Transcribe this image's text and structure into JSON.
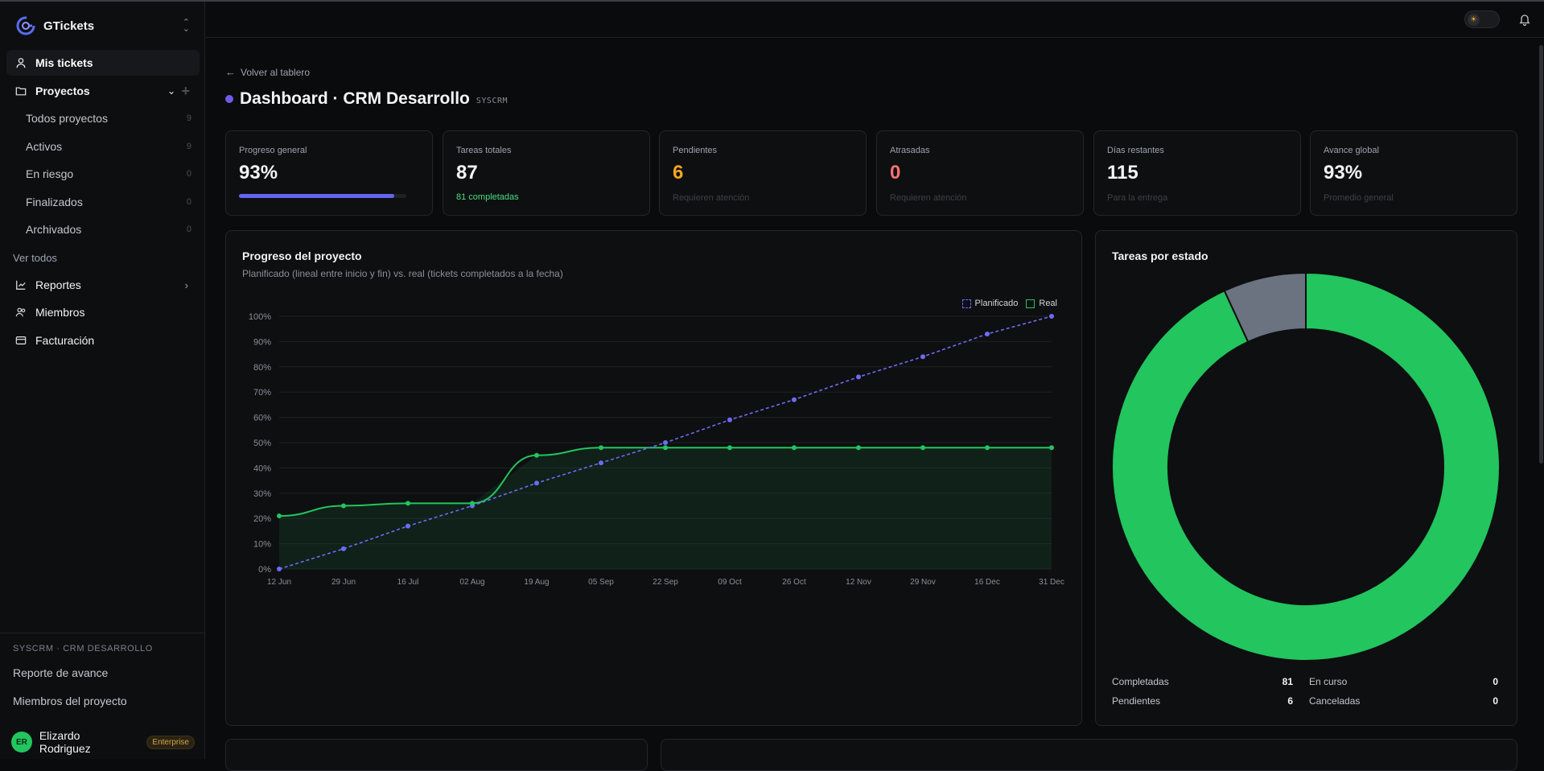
{
  "app": {
    "name": "GTickets"
  },
  "sidebar": {
    "my_tickets": "Mis tickets",
    "projects": "Proyectos",
    "project_filters": [
      {
        "label": "Todos proyectos",
        "count": "9"
      },
      {
        "label": "Activos",
        "count": "9"
      },
      {
        "label": "En riesgo",
        "count": "0"
      },
      {
        "label": "Finalizados",
        "count": "0"
      },
      {
        "label": "Archivados",
        "count": "0"
      }
    ],
    "see_all": "Ver todos",
    "reports": "Reportes",
    "members": "Miembros",
    "billing": "Facturación",
    "project_section": "SYSCRM · CRM DESARROLLO",
    "project_links": [
      "Reporte de avance",
      "Miembros del proyecto"
    ],
    "user": {
      "initials": "ER",
      "name": "Elizardo Rodriguez",
      "plan": "Enterprise"
    }
  },
  "header": {
    "back": "Volver al tablero",
    "title": "Dashboard · CRM Desarrollo",
    "code": "SYSCRM"
  },
  "stats": [
    {
      "label": "Progreso general",
      "value": "93%",
      "progress": 0.93
    },
    {
      "label": "Tareas totales",
      "value": "87",
      "sub": "81 completadas"
    },
    {
      "label": "Pendientes",
      "value": "6",
      "sub": "Requieren atención"
    },
    {
      "label": "Atrasadas",
      "value": "0",
      "sub": "Requieren atención"
    },
    {
      "label": "Días restantes",
      "value": "115",
      "sub": "Para la entrega"
    },
    {
      "label": "Avance global",
      "value": "93%",
      "sub": "Promedio general"
    }
  ],
  "colors": {
    "accent": "#6366f1",
    "green": "#22c55e",
    "orange": "#f5a524",
    "red": "#f87171",
    "gray": "#6b7280"
  },
  "progress_chart": {
    "title": "Progreso del proyecto",
    "subtitle": "Planificado (lineal entre inicio y fin) vs. real (tickets completados a la fecha)",
    "legend": [
      "Planificado",
      "Real"
    ]
  },
  "status_chart": {
    "title": "Tareas por estado",
    "rows": [
      {
        "label": "Completadas",
        "value": "81"
      },
      {
        "label": "En curso",
        "value": "0"
      },
      {
        "label": "Pendientes",
        "value": "6"
      },
      {
        "label": "Canceladas",
        "value": "0"
      }
    ]
  },
  "chart_data": [
    {
      "type": "line",
      "categories": [
        "12 Jun",
        "29 Jun",
        "16 Jul",
        "02 Aug",
        "19 Aug",
        "05 Sep",
        "22 Sep",
        "09 Oct",
        "26 Oct",
        "12 Nov",
        "29 Nov",
        "16 Dec",
        "31 Dec"
      ],
      "series": [
        {
          "name": "Planificado",
          "values": [
            0,
            8,
            17,
            25,
            34,
            42,
            50,
            59,
            67,
            76,
            84,
            93,
            100
          ]
        },
        {
          "name": "Real",
          "values": [
            21,
            25,
            26,
            26,
            45,
            48,
            48,
            48,
            48,
            48,
            48,
            48,
            48
          ]
        }
      ],
      "ylim": [
        0,
        100
      ],
      "yticks": [
        "0%",
        "10%",
        "20%",
        "30%",
        "40%",
        "50%",
        "60%",
        "70%",
        "80%",
        "90%",
        "100%"
      ],
      "grid": true,
      "legend_position": "top-right"
    },
    {
      "type": "pie",
      "labels": [
        "Completadas",
        "Pendientes",
        "En curso",
        "Canceladas"
      ],
      "values": [
        81,
        6,
        0,
        0
      ],
      "colors": [
        "#22c55e",
        "#6b7280",
        "#6366f1",
        "#ef4444"
      ]
    }
  ]
}
